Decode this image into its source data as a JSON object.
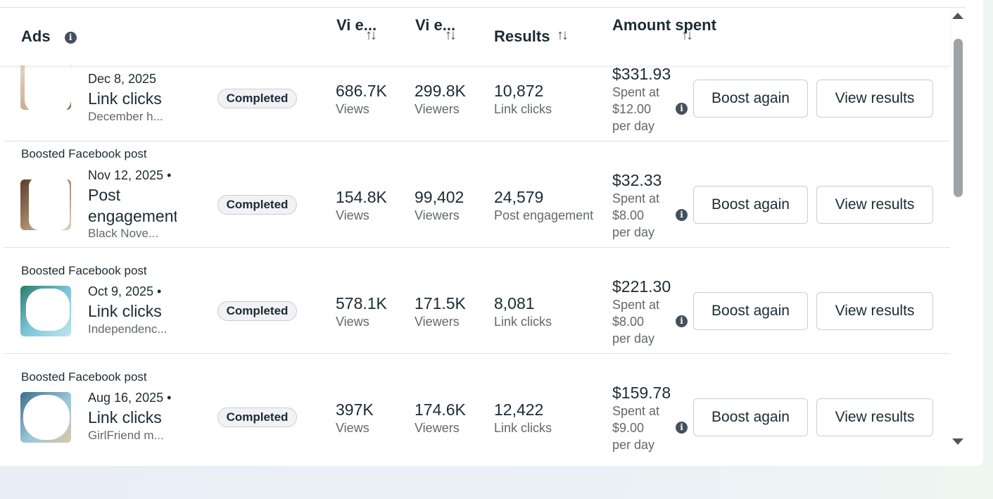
{
  "header": {
    "ads": "Ads",
    "views_line1": "Vi",
    "views_line2": "e...",
    "viewers_line1": "Vi",
    "viewers_line2": "e...",
    "results": "Results",
    "amount_line1": "Amount",
    "amount_line2": "spent"
  },
  "icons": {
    "sort": "sort-arrows-icon",
    "info": "info-icon"
  },
  "rows": [
    {
      "post_type": "",
      "date": "Dec 8, 2025",
      "objective": "Link clicks",
      "description": "December h...",
      "status": "Completed",
      "views": "686.7K",
      "views_label": "Views",
      "viewers": "299.8K",
      "viewers_label": "Viewers",
      "results": "10,872",
      "results_label": "Link clicks",
      "amount": "$331.93",
      "spent_line1": "Spent at",
      "spent_line2": "$12.00",
      "spent_line3": "per day",
      "boost_label": "Boost again",
      "view_label": "View results"
    },
    {
      "post_type": "Boosted Facebook post",
      "date": "Nov 12, 2025 •",
      "objective": "Post engagement",
      "description": "Black Nove...",
      "status": "Completed",
      "views": "154.8K",
      "views_label": "Views",
      "viewers": "99,402",
      "viewers_label": "Viewers",
      "results": "24,579",
      "results_label": "Post engagement",
      "amount": "$32.33",
      "spent_line1": "Spent at",
      "spent_line2": "$8.00",
      "spent_line3": "per day",
      "boost_label": "Boost again",
      "view_label": "View results"
    },
    {
      "post_type": "Boosted Facebook post",
      "date": "Oct 9, 2025 •",
      "objective": "Link clicks",
      "description": "Independenc...",
      "status": "Completed",
      "views": "578.1K",
      "views_label": "Views",
      "viewers": "171.5K",
      "viewers_label": "Viewers",
      "results": "8,081",
      "results_label": "Link clicks",
      "amount": "$221.30",
      "spent_line1": "Spent at",
      "spent_line2": "$8.00",
      "spent_line3": "per day",
      "boost_label": "Boost again",
      "view_label": "View results"
    },
    {
      "post_type": "Boosted Facebook post",
      "date": "Aug 16, 2025 •",
      "objective": "Link clicks",
      "description": "GirlFriend m...",
      "status": "Completed",
      "views": "397K",
      "views_label": "Views",
      "viewers": "174.6K",
      "viewers_label": "Viewers",
      "results": "12,422",
      "results_label": "Link clicks",
      "amount": "$159.78",
      "spent_line1": "Spent at",
      "spent_line2": "$9.00",
      "spent_line3": "per day",
      "boost_label": "Boost again",
      "view_label": "View results"
    }
  ]
}
